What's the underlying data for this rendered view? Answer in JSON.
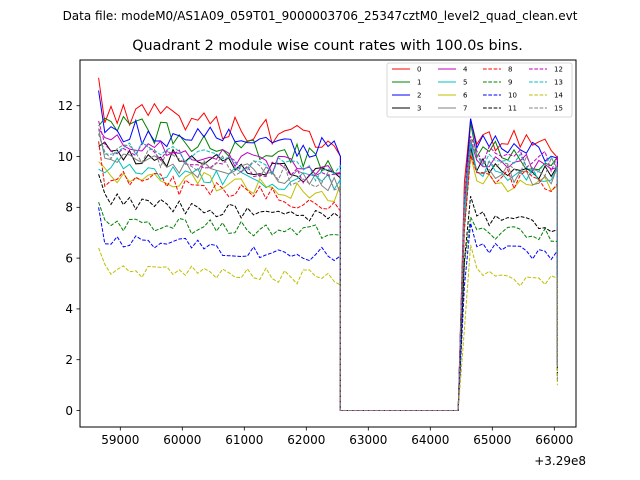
{
  "suptitle": "Data file: modeM0/AS1A09_059T01_9000003706_25347cztM0_level2_quad_clean.evt",
  "chart_data": {
    "type": "line",
    "title": "Quadrant 2 module wise count rates with 100.0s bins.",
    "xlabel": "",
    "ylabel": "",
    "offset_text": "+3.29e8",
    "xlim": [
      58350,
      66350
    ],
    "ylim": [
      -0.65,
      13.8
    ],
    "x_ticks": [
      59000,
      60000,
      61000,
      62000,
      63000,
      64000,
      65000,
      66000
    ],
    "x_tick_labels": [
      "59000",
      "60000",
      "61000",
      "62000",
      "63000",
      "64000",
      "65000",
      "66000"
    ],
    "y_ticks": [
      0,
      2,
      4,
      6,
      8,
      10,
      12
    ],
    "y_tick_labels": [
      "0",
      "2",
      "4",
      "6",
      "8",
      "10",
      "12"
    ],
    "legend_position": "upper right, 4 columns",
    "x_segments": {
      "first": {
        "start": 58650,
        "step": 100,
        "count": 40
      },
      "gap": {
        "start": 62550,
        "end": 64450,
        "value": 0
      },
      "second": {
        "start": 64550,
        "step": 100,
        "count": 16
      }
    },
    "series": [
      {
        "name": "0",
        "color": "#ff0000",
        "dash": "solid",
        "base1": 11.8,
        "end1": 10.6,
        "base2": 10.9,
        "end2": 10.4,
        "start": 13.1,
        "amp": 0.6
      },
      {
        "name": "1",
        "color": "#008000",
        "dash": "solid",
        "base1": 11.3,
        "end1": 9.7,
        "base2": 10.3,
        "end2": 9.8,
        "start": 11.2,
        "amp": 0.5
      },
      {
        "name": "2",
        "color": "#0000ff",
        "dash": "solid",
        "base1": 11.1,
        "end1": 10.2,
        "base2": 10.6,
        "end2": 10.2,
        "start": 12.6,
        "amp": 0.5
      },
      {
        "name": "3",
        "color": "#000000",
        "dash": "solid",
        "base1": 10.2,
        "end1": 9.2,
        "base2": 9.6,
        "end2": 9.4,
        "start": 10.4,
        "amp": 0.4
      },
      {
        "name": "4",
        "color": "#bf00bf",
        "dash": "solid",
        "base1": 10.7,
        "end1": 9.3,
        "base2": 10.0,
        "end2": 9.7,
        "start": 11.1,
        "amp": 0.4
      },
      {
        "name": "5",
        "color": "#00bfbf",
        "dash": "solid",
        "base1": 9.6,
        "end1": 8.9,
        "base2": 9.5,
        "end2": 9.3,
        "start": 9.5,
        "amp": 0.4
      },
      {
        "name": "6",
        "color": "#bfbf00",
        "dash": "solid",
        "base1": 9.3,
        "end1": 8.6,
        "base2": 9.1,
        "end2": 8.9,
        "start": 9.8,
        "amp": 0.4
      },
      {
        "name": "7",
        "color": "#808080",
        "dash": "solid",
        "base1": 10.0,
        "end1": 8.9,
        "base2": 9.4,
        "end2": 9.2,
        "start": 11.1,
        "amp": 0.4
      },
      {
        "name": "8",
        "color": "#ff0000",
        "dash": "dashed",
        "base1": 9.2,
        "end1": 8.1,
        "base2": 9.4,
        "end2": 8.9,
        "start": 10.6,
        "amp": 0.4
      },
      {
        "name": "9",
        "color": "#008000",
        "dash": "dashed",
        "base1": 7.4,
        "end1": 7.0,
        "base2": 7.1,
        "end2": 6.9,
        "start": 8.2,
        "amp": 0.3
      },
      {
        "name": "10",
        "color": "#0000ff",
        "dash": "dashed",
        "base1": 6.7,
        "end1": 6.1,
        "base2": 6.4,
        "end2": 6.2,
        "start": 8.0,
        "amp": 0.3
      },
      {
        "name": "11",
        "color": "#000000",
        "dash": "dashed",
        "base1": 8.3,
        "end1": 7.5,
        "base2": 7.6,
        "end2": 7.3,
        "start": 9.3,
        "amp": 0.3
      },
      {
        "name": "12",
        "color": "#bf00bf",
        "dash": "dashed",
        "base1": 10.5,
        "end1": 9.1,
        "base2": 10.1,
        "end2": 9.8,
        "start": 11.4,
        "amp": 0.4
      },
      {
        "name": "13",
        "color": "#00bfbf",
        "dash": "dashed",
        "base1": 10.4,
        "end1": 9.3,
        "base2": 9.9,
        "end2": 9.6,
        "start": 10.9,
        "amp": 0.4
      },
      {
        "name": "14",
        "color": "#bfbf00",
        "dash": "dashed",
        "base1": 5.6,
        "end1": 5.2,
        "base2": 5.5,
        "end2": 5.0,
        "start": 6.4,
        "amp": 0.3
      },
      {
        "name": "15",
        "color": "#808080",
        "dash": "dashed",
        "base1": 10.3,
        "end1": 9.0,
        "base2": 9.8,
        "end2": 9.6,
        "start": 10.9,
        "amp": 0.4
      }
    ]
  }
}
